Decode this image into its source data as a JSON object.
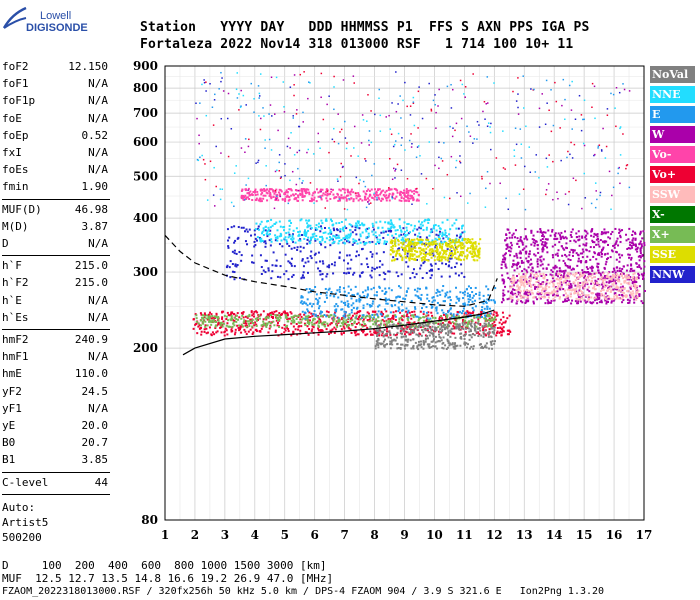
{
  "logo": {
    "top": "Lowell",
    "bottom": "DIGISONDE"
  },
  "header": {
    "line1": "Station   YYYY DAY   DDD HHMMSS P1  FFS S AXN PPS IGA PS",
    "line2": "Fortaleza 2022 Nov14 318 013000 RSF   1 714 100 10+ 11"
  },
  "params": {
    "group1": [
      {
        "label": "foF2",
        "value": "12.150"
      },
      {
        "label": "foF1",
        "value": "N/A"
      },
      {
        "label": "foF1p",
        "value": "N/A"
      },
      {
        "label": "foE",
        "value": "N/A"
      },
      {
        "label": "foEp",
        "value": "0.52"
      },
      {
        "label": "fxI",
        "value": "N/A"
      },
      {
        "label": "foEs",
        "value": "N/A"
      },
      {
        "label": "fmin",
        "value": "1.90"
      }
    ],
    "group2": [
      {
        "label": "MUF(D)",
        "value": "46.98"
      },
      {
        "label": "M(D)",
        "value": "3.87"
      },
      {
        "label": "D",
        "value": "N/A"
      }
    ],
    "group3": [
      {
        "label": "h`F",
        "value": "215.0"
      },
      {
        "label": "h`F2",
        "value": "215.0"
      },
      {
        "label": "h`E",
        "value": "N/A"
      },
      {
        "label": "h`Es",
        "value": "N/A"
      }
    ],
    "group4": [
      {
        "label": "hmF2",
        "value": "240.9"
      },
      {
        "label": "hmF1",
        "value": "N/A"
      },
      {
        "label": "hmE",
        "value": "110.0"
      },
      {
        "label": "yF2",
        "value": "24.5"
      },
      {
        "label": "yF1",
        "value": "N/A"
      },
      {
        "label": "yE",
        "value": "20.0"
      },
      {
        "label": "B0",
        "value": "20.7"
      },
      {
        "label": "B1",
        "value": "3.85"
      }
    ],
    "group5": [
      {
        "label": "C-level",
        "value": "44"
      }
    ],
    "auto_label": "Auto:",
    "artist": "Artist5",
    "code": "500200"
  },
  "legend": [
    {
      "label": "NoVal",
      "bg": "#808080",
      "fg": "#ffffff"
    },
    {
      "label": "NNE",
      "bg": "#22ddff",
      "fg": "#ffffff"
    },
    {
      "label": "E",
      "bg": "#2299ee",
      "fg": "#ffffff"
    },
    {
      "label": "W",
      "bg": "#aa00aa",
      "fg": "#ffffff"
    },
    {
      "label": "Vo-",
      "bg": "#ff44aa",
      "fg": "#ffffff"
    },
    {
      "label": "Vo+",
      "bg": "#ee0033",
      "fg": "#ffffff"
    },
    {
      "label": "SSW",
      "bg": "#ffbbbb",
      "fg": "#ffffff"
    },
    {
      "label": "X-",
      "bg": "#007700",
      "fg": "#ffffff"
    },
    {
      "label": "X+",
      "bg": "#77bb55",
      "fg": "#ffffff"
    },
    {
      "label": "SSE",
      "bg": "#dddd00",
      "fg": "#ffffff"
    },
    {
      "label": "NNW",
      "bg": "#2222cc",
      "fg": "#ffffff"
    }
  ],
  "footer": {
    "line1": "D     100  200  400  600  800 1000 1500 3000 [km]",
    "line2": "MUF  12.5 12.7 13.5 14.8 16.6 19.2 26.9 47.0 [MHz]",
    "line3": "FZAOM_2022318013000.RSF / 320fx256h 50 kHz 5.0 km / DPS-4 FZAOM 904 / 3.9 S 321.6 E   Ion2Png 1.3.20"
  },
  "chart_data": {
    "type": "scatter",
    "title": "",
    "xlabel": "",
    "ylabel": "",
    "x_ticks": [
      1,
      2,
      3,
      4,
      5,
      6,
      7,
      8,
      9,
      10,
      11,
      12,
      13,
      14,
      15,
      16,
      17
    ],
    "y_ticks": [
      80,
      200,
      300,
      400,
      500,
      600,
      700,
      800,
      900
    ],
    "xlim": [
      1,
      17
    ],
    "ylim": [
      80,
      900
    ],
    "y_scale": "log",
    "grid": true,
    "traces": [
      {
        "name": "",
        "x": [
          1.6,
          2.0,
          3.0,
          4.0,
          5.0,
          6.0,
          7.0,
          8.0,
          9.0,
          10.0,
          11.0,
          11.6,
          12.0
        ],
        "y": [
          193,
          200,
          210,
          213,
          215,
          217,
          219,
          222,
          226,
          231,
          236,
          240,
          245
        ]
      },
      {
        "name": "",
        "x": [
          1.0,
          1.5,
          2.0,
          3.0,
          4.0,
          5.0,
          6.0,
          7.0,
          8.0,
          9.0,
          10.0,
          11.0,
          11.8,
          12.1
        ],
        "y": [
          365,
          335,
          315,
          295,
          285,
          278,
          270,
          265,
          260,
          256,
          252,
          250,
          258,
          290
        ]
      }
    ],
    "echo_bands": [
      {
        "name": "W",
        "x_range": [
          12.2,
          17
        ],
        "y_range": [
          255,
          380
        ]
      },
      {
        "name": "SSW",
        "x_range": [
          12.5,
          16.8
        ],
        "y_range": [
          260,
          300
        ]
      },
      {
        "name": "Vo+",
        "x_range": [
          1.9,
          12.5
        ],
        "y_range": [
          215,
          245
        ]
      },
      {
        "name": "E",
        "x_range": [
          5.5,
          12.0
        ],
        "y_range": [
          235,
          280
        ]
      },
      {
        "name": "NNW",
        "x_range": [
          3.0,
          11.0
        ],
        "y_range": [
          290,
          385
        ]
      },
      {
        "name": "Vo-",
        "x_range": [
          3.5,
          9.5
        ],
        "y_range": [
          440,
          470
        ]
      },
      {
        "name": "NNE",
        "x_range": [
          4.0,
          11.0
        ],
        "y_range": [
          350,
          400
        ]
      },
      {
        "name": "SSE",
        "x_range": [
          8.5,
          11.5
        ],
        "y_range": [
          320,
          360
        ]
      },
      {
        "name": "X+",
        "x_range": [
          2.0,
          12.0
        ],
        "y_range": [
          225,
          240
        ]
      },
      {
        "name": "NoVal",
        "x_range": [
          8.0,
          12.0
        ],
        "y_range": [
          200,
          230
        ]
      }
    ]
  }
}
